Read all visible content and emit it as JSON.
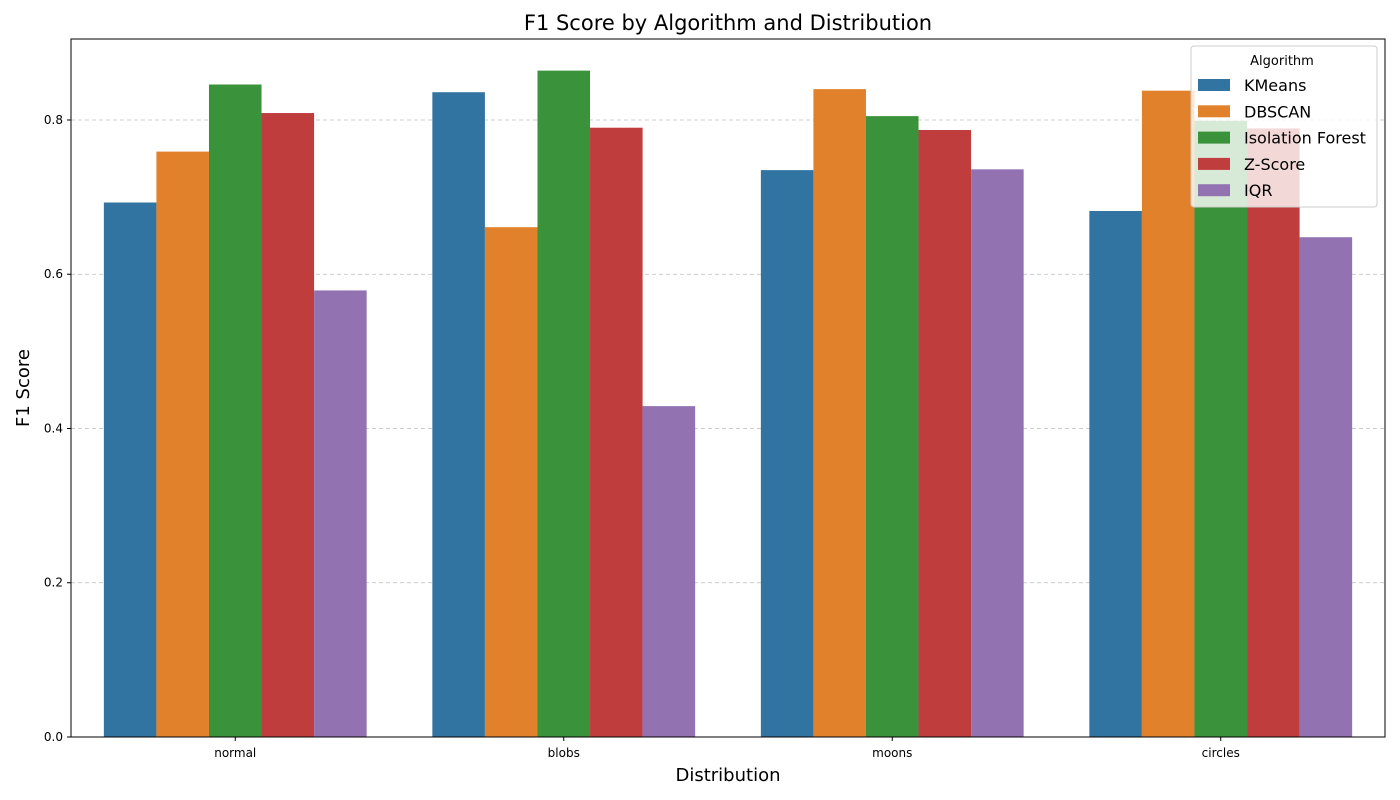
{
  "chart_data": {
    "type": "bar",
    "title": "F1 Score by Algorithm and Distribution",
    "xlabel": "Distribution",
    "ylabel": "F1 Score",
    "ylim": [
      0,
      0.905
    ],
    "yticks": [
      "0.0",
      "0.2",
      "0.4",
      "0.6",
      "0.8"
    ],
    "grid": "y-dashed",
    "legend_title": "Algorithm",
    "legend_position": "top-right",
    "categories": [
      "normal",
      "blobs",
      "moons",
      "circles"
    ],
    "series": [
      {
        "name": "KMeans",
        "color": "#3274a1",
        "values": [
          0.693,
          0.836,
          0.735,
          0.682
        ]
      },
      {
        "name": "DBSCAN",
        "color": "#e1812c",
        "values": [
          0.759,
          0.661,
          0.84,
          0.838
        ]
      },
      {
        "name": "Isolation Forest",
        "color": "#3a923a",
        "values": [
          0.846,
          0.864,
          0.805,
          0.799
        ]
      },
      {
        "name": "Z-Score",
        "color": "#c03d3e",
        "values": [
          0.809,
          0.79,
          0.787,
          0.789
        ]
      },
      {
        "name": "IQR",
        "color": "#9372b2",
        "values": [
          0.579,
          0.429,
          0.736,
          0.648
        ]
      }
    ]
  }
}
